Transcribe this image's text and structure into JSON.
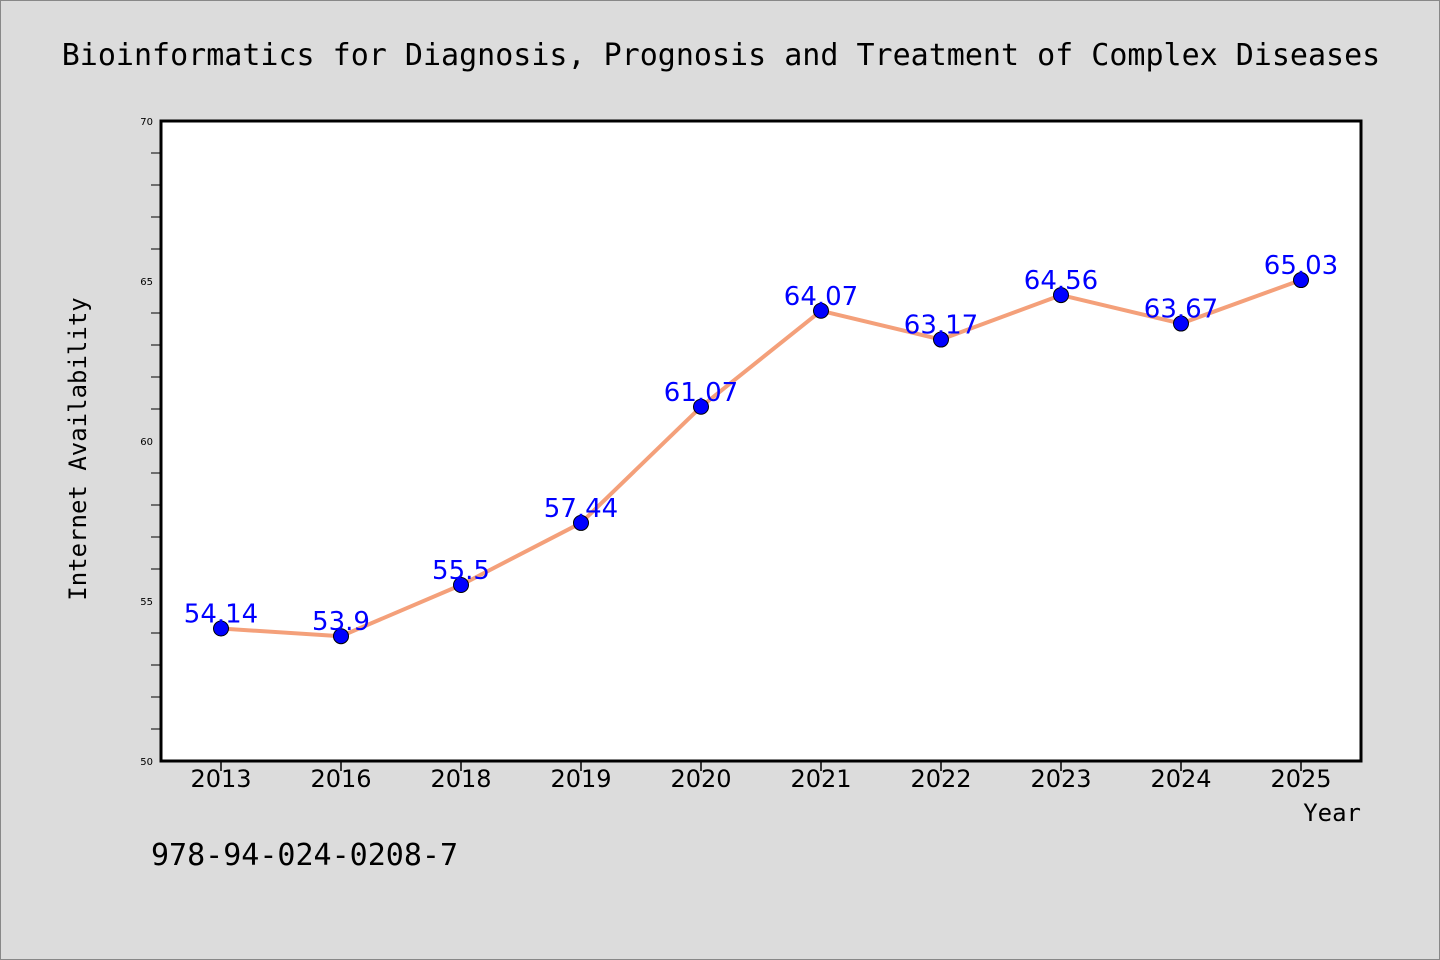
{
  "chart_data": {
    "type": "line",
    "title": "Bioinformatics for Diagnosis, Prognosis and Treatment of Complex Diseases",
    "xlabel": "Year",
    "ylabel": "Internet Availability",
    "categories": [
      "2013",
      "2016",
      "2018",
      "2019",
      "2020",
      "2021",
      "2022",
      "2023",
      "2024",
      "2025"
    ],
    "series": [
      {
        "values": [
          54.14,
          53.9,
          55.5,
          57.44,
          61.07,
          64.07,
          63.17,
          64.56,
          63.67,
          65.03
        ],
        "labels": [
          "54.14",
          "53.9",
          "55.5",
          "57.44",
          "61.07",
          "64.07",
          "63.17",
          "64.56",
          "63.67",
          "65.03"
        ],
        "line_color": "#f4a07a",
        "marker_color": "#0000ff",
        "label_color": "#0000ff"
      }
    ],
    "ylim": [
      50,
      70
    ],
    "yticks": [
      50,
      55,
      60,
      65,
      70
    ],
    "grid": false,
    "legend": "none"
  },
  "footer": {
    "isbn": "978-94-024-0208-7"
  },
  "colors": {
    "background": "#dcdcdc",
    "plot_background": "#ffffff"
  }
}
